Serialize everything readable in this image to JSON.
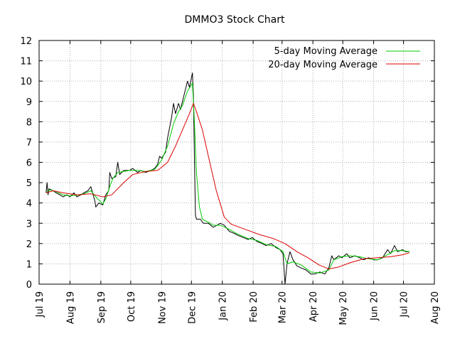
{
  "chart_data": {
    "type": "line",
    "title": "DMMO3 Stock Chart",
    "xlabel": "",
    "ylabel": "",
    "x_tick_labels": [
      "Jul 19",
      "Aug 19",
      "Sep 19",
      "Oct 19",
      "Nov 19",
      "Dec 19",
      "Jan 20",
      "Feb 20",
      "Mar 20",
      "Apr 20",
      "May 20",
      "Jun 20",
      "Jul 20",
      "Aug 20"
    ],
    "y_tick_labels": [
      "0",
      "1",
      "2",
      "3",
      "4",
      "5",
      "6",
      "7",
      "8",
      "9",
      "10",
      "11",
      "12"
    ],
    "xlim": [
      "2019-07-01",
      "2020-08-01"
    ],
    "ylim": [
      0,
      12
    ],
    "grid": true,
    "legend_position": "top-right",
    "colors": {
      "price": "#000000",
      "ma5": "#00cc00",
      "ma20": "#dd0000"
    },
    "series": [
      {
        "key": "price",
        "points": [
          [
            "2019-07-08",
            4.5
          ],
          [
            "2019-07-09",
            5.0
          ],
          [
            "2019-07-10",
            4.4
          ],
          [
            "2019-07-11",
            4.7
          ],
          [
            "2019-07-15",
            4.6
          ],
          [
            "2019-07-18",
            4.5
          ],
          [
            "2019-07-22",
            4.4
          ],
          [
            "2019-07-25",
            4.3
          ],
          [
            "2019-07-29",
            4.4
          ],
          [
            "2019-08-01",
            4.3
          ],
          [
            "2019-08-05",
            4.5
          ],
          [
            "2019-08-08",
            4.3
          ],
          [
            "2019-08-12",
            4.4
          ],
          [
            "2019-08-15",
            4.5
          ],
          [
            "2019-08-19",
            4.6
          ],
          [
            "2019-08-22",
            4.8
          ],
          [
            "2019-08-26",
            4.1
          ],
          [
            "2019-08-27",
            3.8
          ],
          [
            "2019-08-30",
            4.0
          ],
          [
            "2019-09-03",
            3.9
          ],
          [
            "2019-09-06",
            4.4
          ],
          [
            "2019-09-09",
            4.6
          ],
          [
            "2019-09-10",
            5.5
          ],
          [
            "2019-09-12",
            5.2
          ],
          [
            "2019-09-16",
            5.3
          ],
          [
            "2019-09-18",
            6.0
          ],
          [
            "2019-09-20",
            5.4
          ],
          [
            "2019-09-24",
            5.6
          ],
          [
            "2019-09-30",
            5.6
          ],
          [
            "2019-10-03",
            5.7
          ],
          [
            "2019-10-08",
            5.5
          ],
          [
            "2019-10-11",
            5.6
          ],
          [
            "2019-10-16",
            5.5
          ],
          [
            "2019-10-21",
            5.6
          ],
          [
            "2019-10-25",
            5.7
          ],
          [
            "2019-10-28",
            5.9
          ],
          [
            "2019-10-30",
            6.3
          ],
          [
            "2019-11-01",
            6.2
          ],
          [
            "2019-11-05",
            6.5
          ],
          [
            "2019-11-07",
            7.2
          ],
          [
            "2019-11-11",
            8.2
          ],
          [
            "2019-11-13",
            8.9
          ],
          [
            "2019-11-15",
            8.4
          ],
          [
            "2019-11-18",
            8.9
          ],
          [
            "2019-11-20",
            8.6
          ],
          [
            "2019-11-22",
            9.0
          ],
          [
            "2019-11-25",
            9.6
          ],
          [
            "2019-11-27",
            10.0
          ],
          [
            "2019-11-29",
            9.7
          ],
          [
            "2019-12-02",
            10.4
          ],
          [
            "2019-12-03",
            9.2
          ],
          [
            "2019-12-04",
            6.2
          ],
          [
            "2019-12-05",
            3.4
          ],
          [
            "2019-12-06",
            3.2
          ],
          [
            "2019-12-10",
            3.2
          ],
          [
            "2019-12-13",
            3.0
          ],
          [
            "2019-12-18",
            3.0
          ],
          [
            "2019-12-23",
            2.8
          ],
          [
            "2019-12-30",
            3.0
          ],
          [
            "2020-01-03",
            2.9
          ],
          [
            "2020-01-08",
            2.6
          ],
          [
            "2020-01-13",
            2.5
          ],
          [
            "2020-01-17",
            2.4
          ],
          [
            "2020-01-22",
            2.3
          ],
          [
            "2020-01-27",
            2.2
          ],
          [
            "2020-01-31",
            2.3
          ],
          [
            "2020-02-05",
            2.1
          ],
          [
            "2020-02-10",
            2.0
          ],
          [
            "2020-02-14",
            1.9
          ],
          [
            "2020-02-19",
            2.0
          ],
          [
            "2020-02-24",
            1.8
          ],
          [
            "2020-02-28",
            1.7
          ],
          [
            "2020-03-02",
            1.5
          ],
          [
            "2020-03-04",
            0.0
          ],
          [
            "2020-03-06",
            1.0
          ],
          [
            "2020-03-09",
            1.6
          ],
          [
            "2020-03-12",
            1.2
          ],
          [
            "2020-03-16",
            0.9
          ],
          [
            "2020-03-20",
            0.8
          ],
          [
            "2020-03-25",
            0.7
          ],
          [
            "2020-03-30",
            0.5
          ],
          [
            "2020-04-03",
            0.5
          ],
          [
            "2020-04-08",
            0.6
          ],
          [
            "2020-04-13",
            0.5
          ],
          [
            "2020-04-17",
            0.8
          ],
          [
            "2020-04-20",
            1.4
          ],
          [
            "2020-04-22",
            1.2
          ],
          [
            "2020-04-27",
            1.4
          ],
          [
            "2020-04-30",
            1.3
          ],
          [
            "2020-05-05",
            1.5
          ],
          [
            "2020-05-08",
            1.3
          ],
          [
            "2020-05-13",
            1.4
          ],
          [
            "2020-05-18",
            1.3
          ],
          [
            "2020-05-22",
            1.2
          ],
          [
            "2020-05-27",
            1.3
          ],
          [
            "2020-06-01",
            1.2
          ],
          [
            "2020-06-05",
            1.2
          ],
          [
            "2020-06-10",
            1.3
          ],
          [
            "2020-06-15",
            1.7
          ],
          [
            "2020-06-18",
            1.5
          ],
          [
            "2020-06-22",
            1.9
          ],
          [
            "2020-06-25",
            1.6
          ],
          [
            "2020-06-30",
            1.7
          ],
          [
            "2020-07-03",
            1.6
          ],
          [
            "2020-07-07",
            1.6
          ]
        ]
      },
      {
        "key": "ma5",
        "name": "5-day Moving Average",
        "points": [
          [
            "2019-07-08",
            4.5
          ],
          [
            "2019-07-12",
            4.65
          ],
          [
            "2019-07-18",
            4.55
          ],
          [
            "2019-07-25",
            4.4
          ],
          [
            "2019-08-01",
            4.35
          ],
          [
            "2019-08-08",
            4.38
          ],
          [
            "2019-08-15",
            4.45
          ],
          [
            "2019-08-22",
            4.6
          ],
          [
            "2019-08-27",
            4.3
          ],
          [
            "2019-09-03",
            3.95
          ],
          [
            "2019-09-06",
            4.2
          ],
          [
            "2019-09-10",
            4.8
          ],
          [
            "2019-09-13",
            5.2
          ],
          [
            "2019-09-18",
            5.5
          ],
          [
            "2019-09-24",
            5.55
          ],
          [
            "2019-09-30",
            5.6
          ],
          [
            "2019-10-08",
            5.6
          ],
          [
            "2019-10-16",
            5.55
          ],
          [
            "2019-10-25",
            5.65
          ],
          [
            "2019-11-01",
            6.1
          ],
          [
            "2019-11-07",
            6.8
          ],
          [
            "2019-11-13",
            7.9
          ],
          [
            "2019-11-18",
            8.5
          ],
          [
            "2019-11-22",
            8.8
          ],
          [
            "2019-11-27",
            9.5
          ],
          [
            "2019-12-02",
            9.9
          ],
          [
            "2019-12-04",
            8.0
          ],
          [
            "2019-12-06",
            5.5
          ],
          [
            "2019-12-09",
            3.8
          ],
          [
            "2019-12-12",
            3.2
          ],
          [
            "2019-12-18",
            3.05
          ],
          [
            "2019-12-23",
            2.9
          ],
          [
            "2019-12-30",
            2.9
          ],
          [
            "2020-01-08",
            2.7
          ],
          [
            "2020-01-17",
            2.45
          ],
          [
            "2020-01-27",
            2.25
          ],
          [
            "2020-02-05",
            2.15
          ],
          [
            "2020-02-14",
            1.95
          ],
          [
            "2020-02-24",
            1.85
          ],
          [
            "2020-03-02",
            1.6
          ],
          [
            "2020-03-06",
            1.0
          ],
          [
            "2020-03-12",
            1.1
          ],
          [
            "2020-03-20",
            0.95
          ],
          [
            "2020-03-30",
            0.6
          ],
          [
            "2020-04-08",
            0.55
          ],
          [
            "2020-04-17",
            0.7
          ],
          [
            "2020-04-22",
            1.2
          ],
          [
            "2020-04-30",
            1.35
          ],
          [
            "2020-05-08",
            1.4
          ],
          [
            "2020-05-18",
            1.35
          ],
          [
            "2020-05-27",
            1.25
          ],
          [
            "2020-06-05",
            1.2
          ],
          [
            "2020-06-15",
            1.45
          ],
          [
            "2020-06-22",
            1.65
          ],
          [
            "2020-06-30",
            1.65
          ],
          [
            "2020-07-07",
            1.6
          ]
        ]
      },
      {
        "key": "ma20",
        "name": "20-day Moving Average",
        "points": [
          [
            "2019-07-08",
            4.5
          ],
          [
            "2019-07-15",
            4.6
          ],
          [
            "2019-07-25",
            4.5
          ],
          [
            "2019-08-08",
            4.4
          ],
          [
            "2019-08-22",
            4.45
          ],
          [
            "2019-09-03",
            4.3
          ],
          [
            "2019-09-12",
            4.4
          ],
          [
            "2019-09-24",
            5.0
          ],
          [
            "2019-10-03",
            5.4
          ],
          [
            "2019-10-16",
            5.55
          ],
          [
            "2019-10-28",
            5.6
          ],
          [
            "2019-11-07",
            6.0
          ],
          [
            "2019-11-15",
            6.8
          ],
          [
            "2019-11-22",
            7.6
          ],
          [
            "2019-11-29",
            8.4
          ],
          [
            "2019-12-03",
            8.9
          ],
          [
            "2019-12-06",
            8.5
          ],
          [
            "2019-12-12",
            7.6
          ],
          [
            "2019-12-18",
            6.3
          ],
          [
            "2019-12-26",
            4.6
          ],
          [
            "2020-01-03",
            3.3
          ],
          [
            "2020-01-10",
            2.95
          ],
          [
            "2020-01-24",
            2.7
          ],
          [
            "2020-02-07",
            2.45
          ],
          [
            "2020-02-21",
            2.25
          ],
          [
            "2020-03-04",
            2.0
          ],
          [
            "2020-03-16",
            1.6
          ],
          [
            "2020-03-27",
            1.3
          ],
          [
            "2020-04-07",
            0.95
          ],
          [
            "2020-04-17",
            0.75
          ],
          [
            "2020-04-27",
            0.85
          ],
          [
            "2020-05-08",
            1.05
          ],
          [
            "2020-05-22",
            1.25
          ],
          [
            "2020-06-05",
            1.3
          ],
          [
            "2020-06-18",
            1.35
          ],
          [
            "2020-06-30",
            1.45
          ],
          [
            "2020-07-07",
            1.55
          ]
        ]
      }
    ]
  }
}
